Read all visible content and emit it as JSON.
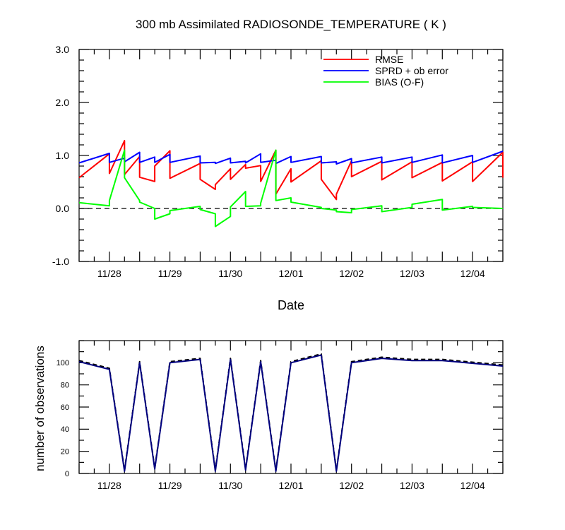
{
  "chart_data": [
    {
      "type": "line",
      "title": "300 mb Assimilated RADIOSONDE_TEMPERATURE ( K )",
      "xlabel": "Date",
      "ylabel": "",
      "ylim": [
        -1.0,
        3.0
      ],
      "yticks": [
        "-1.0",
        "0.0",
        "1.0",
        "2.0",
        "3.0"
      ],
      "xticks": [
        "11/28",
        "11/29",
        "11/30",
        "12/01",
        "12/02",
        "12/03",
        "12/04"
      ],
      "grid": false,
      "legend_position": "top-right",
      "zero_line": "dashed",
      "series": [
        {
          "name": "RMSE",
          "color": "#ff0000",
          "points": [
            [
              "11/27 12:00",
              0.58
            ],
            [
              "11/28 00:00",
              1.03
            ],
            [
              "11/28 00:00",
              0.66
            ],
            [
              "11/28 06:00",
              1.28
            ],
            [
              "11/28 06:00",
              0.64
            ],
            [
              "11/28 12:00",
              0.98
            ],
            [
              "11/28 12:00",
              0.59
            ],
            [
              "11/28 18:00",
              0.51
            ],
            [
              "11/28 18:00",
              0.8
            ],
            [
              "11/29 00:00",
              1.09
            ],
            [
              "11/29 00:00",
              0.57
            ],
            [
              "11/29 12:00",
              0.85
            ],
            [
              "11/29 12:00",
              0.55
            ],
            [
              "11/29 18:00",
              0.36
            ],
            [
              "11/29 18:00",
              0.45
            ],
            [
              "11/30 00:00",
              0.75
            ],
            [
              "11/30 00:00",
              0.55
            ],
            [
              "11/30 06:00",
              0.83
            ],
            [
              "11/30 06:00",
              0.76
            ],
            [
              "11/30 12:00",
              0.81
            ],
            [
              "11/30 12:00",
              0.51
            ],
            [
              "11/30 18:00",
              1.1
            ],
            [
              "11/30 18:00",
              0.27
            ],
            [
              "12/01 00:00",
              0.75
            ],
            [
              "12/01 00:00",
              0.5
            ],
            [
              "12/01 12:00",
              0.9
            ],
            [
              "12/01 12:00",
              0.55
            ],
            [
              "12/01 18:00",
              0.17
            ],
            [
              "12/01 18:00",
              0.27
            ],
            [
              "12/02 00:00",
              0.9
            ],
            [
              "12/02 00:00",
              0.6
            ],
            [
              "12/02 12:00",
              0.89
            ],
            [
              "12/02 12:00",
              0.54
            ],
            [
              "12/03 00:00",
              0.88
            ],
            [
              "12/03 00:00",
              0.58
            ],
            [
              "12/03 12:00",
              0.87
            ],
            [
              "12/03 12:00",
              0.52
            ],
            [
              "12/04 00:00",
              0.88
            ],
            [
              "12/04 00:00",
              0.51
            ],
            [
              "12/04 12:00",
              1.06
            ],
            [
              "12/04 12:00",
              0.58
            ]
          ]
        },
        {
          "name": "SPRD + ob error",
          "color": "#0000ff",
          "points": [
            [
              "11/27 12:00",
              0.86
            ],
            [
              "11/28 00:00",
              1.04
            ],
            [
              "11/28 00:00",
              0.87
            ],
            [
              "11/28 06:00",
              0.95
            ],
            [
              "11/28 06:00",
              0.88
            ],
            [
              "11/28 12:00",
              1.06
            ],
            [
              "11/28 12:00",
              0.87
            ],
            [
              "11/28 18:00",
              0.97
            ],
            [
              "11/28 18:00",
              0.87
            ],
            [
              "11/29 00:00",
              1.02
            ],
            [
              "11/29 00:00",
              0.87
            ],
            [
              "11/29 12:00",
              0.99
            ],
            [
              "11/29 12:00",
              0.86
            ],
            [
              "11/29 18:00",
              0.87
            ],
            [
              "11/29 18:00",
              0.85
            ],
            [
              "11/30 00:00",
              0.95
            ],
            [
              "11/30 00:00",
              0.86
            ],
            [
              "11/30 06:00",
              0.89
            ],
            [
              "11/30 06:00",
              0.86
            ],
            [
              "11/30 12:00",
              1.03
            ],
            [
              "11/30 12:00",
              0.87
            ],
            [
              "11/30 18:00",
              0.91
            ],
            [
              "11/30 18:00",
              0.85
            ],
            [
              "12/01 00:00",
              0.98
            ],
            [
              "12/01 00:00",
              0.87
            ],
            [
              "12/01 12:00",
              0.98
            ],
            [
              "12/01 12:00",
              0.86
            ],
            [
              "12/01 18:00",
              0.88
            ],
            [
              "12/01 18:00",
              0.84
            ],
            [
              "12/02 00:00",
              0.94
            ],
            [
              "12/02 00:00",
              0.86
            ],
            [
              "12/02 12:00",
              0.97
            ],
            [
              "12/02 12:00",
              0.86
            ],
            [
              "12/03 00:00",
              0.97
            ],
            [
              "12/03 00:00",
              0.87
            ],
            [
              "12/03 12:00",
              1.01
            ],
            [
              "12/03 12:00",
              0.86
            ],
            [
              "12/04 00:00",
              1.0
            ],
            [
              "12/04 00:00",
              0.87
            ],
            [
              "12/04 12:00",
              1.08
            ]
          ]
        },
        {
          "name": "BIAS (O-F)",
          "color": "#00ff00",
          "points": [
            [
              "11/27 12:00",
              0.11
            ],
            [
              "11/28 00:00",
              0.05
            ],
            [
              "11/28 00:00",
              0.15
            ],
            [
              "11/28 06:00",
              1.1
            ],
            [
              "11/28 06:00",
              0.58
            ],
            [
              "11/28 12:00",
              0.15
            ],
            [
              "11/28 12:00",
              0.12
            ],
            [
              "11/28 18:00",
              0.0
            ],
            [
              "11/28 18:00",
              -0.2
            ],
            [
              "11/29 00:00",
              -0.1
            ],
            [
              "11/29 00:00",
              -0.04
            ],
            [
              "11/29 12:00",
              0.04
            ],
            [
              "11/29 12:00",
              -0.02
            ],
            [
              "11/29 18:00",
              -0.1
            ],
            [
              "11/29 18:00",
              -0.34
            ],
            [
              "11/30 00:00",
              -0.15
            ],
            [
              "11/30 00:00",
              0.03
            ],
            [
              "11/30 06:00",
              0.32
            ],
            [
              "11/30 06:00",
              0.04
            ],
            [
              "11/30 12:00",
              0.05
            ],
            [
              "11/30 12:00",
              0.1
            ],
            [
              "11/30 18:00",
              1.1
            ],
            [
              "11/30 18:00",
              0.15
            ],
            [
              "12/01 00:00",
              0.2
            ],
            [
              "12/01 00:00",
              0.12
            ],
            [
              "12/01 12:00",
              0.02
            ],
            [
              "12/01 12:00",
              0.0
            ],
            [
              "12/01 18:00",
              -0.03
            ],
            [
              "12/01 18:00",
              -0.06
            ],
            [
              "12/02 00:00",
              -0.08
            ],
            [
              "12/02 00:00",
              -0.02
            ],
            [
              "12/02 12:00",
              0.05
            ],
            [
              "12/02 12:00",
              -0.06
            ],
            [
              "12/03 00:00",
              0.02
            ],
            [
              "12/03 00:00",
              0.08
            ],
            [
              "12/03 12:00",
              0.17
            ],
            [
              "12/03 12:00",
              -0.03
            ],
            [
              "12/04 00:00",
              0.04
            ],
            [
              "12/04 00:00",
              0.02
            ],
            [
              "12/04 12:00",
              0.0
            ]
          ]
        }
      ]
    },
    {
      "type": "line",
      "title": "",
      "xlabel": "",
      "ylabel": "number of observations",
      "ylim": [
        0,
        120
      ],
      "yticks": [
        "0",
        "20",
        "40",
        "60",
        "80",
        "100"
      ],
      "xticks": [
        "11/28",
        "11/29",
        "11/30",
        "12/01",
        "12/02",
        "12/03",
        "12/04"
      ],
      "grid": false,
      "series": [
        {
          "style": "dashed",
          "color": "#000000",
          "points": [
            [
              "11/27 12:00",
              102
            ],
            [
              "11/28 00:00",
              95
            ],
            [
              "11/28 06:00",
              3
            ],
            [
              "11/28 12:00",
              101
            ],
            [
              "11/28 18:00",
              5
            ],
            [
              "11/29 00:00",
              101
            ],
            [
              "11/29 12:00",
              104
            ],
            [
              "11/29 18:00",
              3
            ],
            [
              "11/30 00:00",
              104
            ],
            [
              "11/30 06:00",
              4
            ],
            [
              "11/30 12:00",
              102
            ],
            [
              "11/30 18:00",
              3
            ],
            [
              "12/01 00:00",
              101
            ],
            [
              "12/01 12:00",
              108
            ],
            [
              "12/01 18:00",
              3
            ],
            [
              "12/02 00:00",
              101
            ],
            [
              "12/02 12:00",
              105
            ],
            [
              "12/03 00:00",
              103
            ],
            [
              "12/03 12:00",
              103
            ],
            [
              "12/04 12:00",
              98
            ]
          ]
        },
        {
          "style": "solid",
          "color": "#00007f",
          "points": [
            [
              "11/27 12:00",
              101
            ],
            [
              "11/28 00:00",
              94
            ],
            [
              "11/28 06:00",
              2
            ],
            [
              "11/28 12:00",
              100
            ],
            [
              "11/28 18:00",
              4
            ],
            [
              "11/29 00:00",
              100
            ],
            [
              "11/29 12:00",
              103
            ],
            [
              "11/29 18:00",
              2
            ],
            [
              "11/30 00:00",
              103
            ],
            [
              "11/30 06:00",
              3
            ],
            [
              "11/30 12:00",
              101
            ],
            [
              "11/30 18:00",
              2
            ],
            [
              "12/01 00:00",
              100
            ],
            [
              "12/01 12:00",
              107
            ],
            [
              "12/01 18:00",
              2
            ],
            [
              "12/02 00:00",
              100
            ],
            [
              "12/02 12:00",
              104
            ],
            [
              "12/03 00:00",
              102
            ],
            [
              "12/03 12:00",
              102
            ],
            [
              "12/04 12:00",
              97
            ]
          ]
        }
      ]
    }
  ]
}
